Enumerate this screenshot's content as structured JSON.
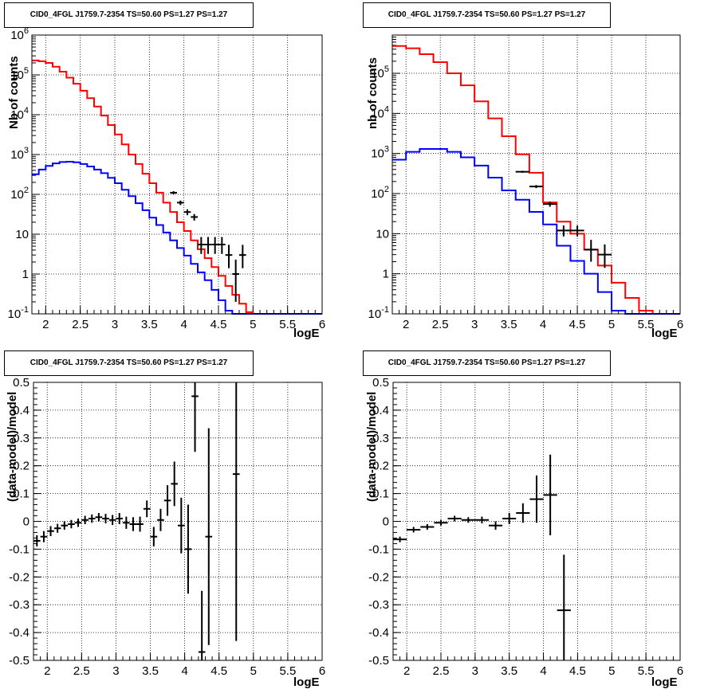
{
  "canvas": {
    "title": "CID0_4FGL J1759.7-2354 TS=50.60 PS=1.27 PS=1.27"
  },
  "chart_data": [
    {
      "type": "line",
      "panel": "top-left",
      "title": "CID0_4FGL J1759.7-2354 TS=50.60 PS=1.27 PS=1.27",
      "xlabel": "logE",
      "ylabel": "Nb of counts",
      "xlim": [
        1.8,
        6
      ],
      "ylim": [
        0.1,
        1000000
      ],
      "yscale": "log",
      "grid": true,
      "xticks": [
        "2",
        "2.5",
        "3",
        "3.5",
        "4",
        "4.5",
        "5",
        "5.5",
        "6"
      ],
      "yticks": [
        "10^-1",
        "1",
        "10",
        "10^2",
        "10^3",
        "10^4",
        "10^5",
        "10^6"
      ],
      "series": [
        {
          "role": "total-model",
          "color": "#ff0000",
          "style": "step",
          "bin_edges": [
            1.8,
            1.9,
            2.0,
            2.1,
            2.2,
            2.3,
            2.4,
            2.5,
            2.6,
            2.7,
            2.8,
            2.9,
            3.0,
            3.1,
            3.2,
            3.3,
            3.4,
            3.5,
            3.6,
            3.7,
            3.8,
            3.9,
            4.0,
            4.1,
            4.2,
            4.3,
            4.4,
            4.5,
            4.6,
            4.7,
            4.8,
            4.9,
            5.0,
            5.1,
            5.2,
            5.3,
            5.4,
            5.5,
            5.6,
            5.7,
            5.8,
            5.9,
            6.0
          ],
          "values": [
            230000,
            220000,
            200000,
            160000,
            120000,
            85000,
            60000,
            40000,
            26000,
            16000,
            9500,
            5500,
            3200,
            1800,
            1000,
            580,
            330,
            190,
            110,
            62,
            36,
            20,
            12,
            7,
            4.2,
            2.5,
            1.5,
            0.9,
            0.5,
            0.3,
            0.18,
            0.11,
            0.07,
            0.05,
            0.03,
            0.02,
            0.02,
            0.02,
            0.02,
            0.02,
            0.02,
            0.02
          ]
        },
        {
          "role": "source-model",
          "color": "#0000ff",
          "style": "step",
          "bin_edges": [
            1.8,
            1.9,
            2.0,
            2.1,
            2.2,
            2.3,
            2.4,
            2.5,
            2.6,
            2.7,
            2.8,
            2.9,
            3.0,
            3.1,
            3.2,
            3.3,
            3.4,
            3.5,
            3.6,
            3.7,
            3.8,
            3.9,
            4.0,
            4.1,
            4.2,
            4.3,
            4.4,
            4.5,
            4.6,
            4.7,
            4.8,
            4.9,
            5.0,
            5.1,
            5.2,
            5.3,
            5.4,
            5.5,
            5.6,
            5.7,
            5.8,
            5.9,
            6.0
          ],
          "values": [
            320,
            420,
            520,
            600,
            650,
            660,
            640,
            580,
            500,
            420,
            340,
            260,
            190,
            130,
            90,
            60,
            40,
            26,
            17,
            11,
            7,
            4.5,
            2.9,
            1.8,
            1.1,
            0.7,
            0.4,
            0.22,
            0.12,
            0.06,
            0.04,
            0.02,
            0.02,
            0.02,
            0.02,
            0.02,
            0.02,
            0.02,
            0.02,
            0.02,
            0.02,
            0.02
          ]
        },
        {
          "role": "data",
          "color": "#000000",
          "style": "errorbar",
          "x": [
            3.85,
            3.95,
            4.05,
            4.15,
            4.25,
            4.35,
            4.45,
            4.55,
            4.65,
            4.75,
            4.85
          ],
          "xerr": [
            0.05,
            0.05,
            0.05,
            0.05,
            0.05,
            0.05,
            0.05,
            0.05,
            0.05,
            0.05,
            0.05
          ],
          "y": [
            110,
            62,
            36,
            27,
            5.5,
            5.5,
            5.5,
            5.5,
            3,
            1,
            3
          ],
          "yerr_low": [
            10,
            8,
            6,
            5,
            2.3,
            2.3,
            2.3,
            2.3,
            1.6,
            0.8,
            1.6
          ],
          "yerr_high": [
            10,
            8,
            6,
            5,
            3,
            3,
            3,
            3,
            2.4,
            1.3,
            2.4
          ]
        }
      ]
    },
    {
      "type": "line",
      "panel": "top-right",
      "title": "CID0_4FGL J1759.7-2354 TS=50.60 PS=1.27 PS=1.27",
      "xlabel": "logE",
      "ylabel": "nb of counts",
      "xlim": [
        1.8,
        6
      ],
      "ylim": [
        0.1,
        900000
      ],
      "yscale": "log",
      "grid": true,
      "xticks": [
        "2",
        "2.5",
        "3",
        "3.5",
        "4",
        "4.5",
        "5",
        "5.5",
        "6"
      ],
      "yticks": [
        "10^-1",
        "1",
        "10",
        "10^2",
        "10^3",
        "10^4",
        "10^5"
      ],
      "series": [
        {
          "role": "total-model",
          "color": "#ff0000",
          "style": "step",
          "bin_edges": [
            1.8,
            2.0,
            2.2,
            2.4,
            2.6,
            2.8,
            3.0,
            3.2,
            3.4,
            3.6,
            3.8,
            4.0,
            4.2,
            4.4,
            4.6,
            4.8,
            5.0,
            5.2,
            5.4,
            5.6,
            5.8,
            6.0
          ],
          "values": [
            480000,
            420000,
            300000,
            190000,
            100000,
            50000,
            20000,
            7500,
            2700,
            950,
            330,
            60,
            20,
            10,
            4,
            1.6,
            0.6,
            0.25,
            0.12,
            0.08,
            0.08
          ]
        },
        {
          "role": "source-model",
          "color": "#0000ff",
          "style": "step",
          "bin_edges": [
            1.8,
            2.0,
            2.2,
            2.4,
            2.6,
            2.8,
            3.0,
            3.2,
            3.4,
            3.6,
            3.8,
            4.0,
            4.2,
            4.4,
            4.6,
            4.8,
            5.0,
            5.2,
            5.4,
            5.6,
            5.8,
            6.0
          ],
          "values": [
            700,
            1100,
            1300,
            1300,
            1100,
            800,
            500,
            250,
            120,
            70,
            35,
            17,
            5,
            2.1,
            1,
            0.35,
            0.12,
            0.08,
            0.08,
            0.08,
            0.08
          ]
        },
        {
          "role": "data",
          "color": "#000000",
          "style": "errorbar",
          "x": [
            3.7,
            3.9,
            4.1,
            4.3,
            4.5,
            4.7,
            4.9
          ],
          "xerr": [
            0.1,
            0.1,
            0.1,
            0.1,
            0.1,
            0.1,
            0.1
          ],
          "y": [
            350,
            150,
            55,
            12,
            12,
            4,
            3
          ],
          "yerr_low": [
            20,
            13,
            8,
            3.5,
            3.5,
            2,
            1.6
          ],
          "yerr_high": [
            20,
            13,
            8,
            4,
            4,
            3,
            2.4
          ]
        }
      ]
    },
    {
      "type": "scatter",
      "panel": "bottom-left",
      "title": "CID0_4FGL J1759.7-2354 TS=50.60 PS=1.27 PS=1.27",
      "xlabel": "logE",
      "ylabel": "(data-model)/model",
      "xlim": [
        1.8,
        6
      ],
      "ylim": [
        -0.5,
        0.5
      ],
      "grid": true,
      "xticks": [
        "2",
        "2.5",
        "3",
        "3.5",
        "4",
        "4.5",
        "5",
        "5.5",
        "6"
      ],
      "yticks": [
        "-0.5",
        "-0.4",
        "-0.3",
        "-0.2",
        "-0.1",
        "0",
        "0.1",
        "0.2",
        "0.3",
        "0.4",
        "0.5"
      ],
      "series": [
        {
          "role": "residuals",
          "color": "#000000",
          "style": "errorbar",
          "x": [
            1.85,
            1.95,
            2.05,
            2.15,
            2.25,
            2.35,
            2.45,
            2.55,
            2.65,
            2.75,
            2.85,
            2.95,
            3.05,
            3.15,
            3.25,
            3.35,
            3.45,
            3.55,
            3.65,
            3.75,
            3.85,
            3.95,
            4.05,
            4.15,
            4.25,
            4.35,
            4.75
          ],
          "xerr": [
            0.05,
            0.05,
            0.05,
            0.05,
            0.05,
            0.05,
            0.05,
            0.05,
            0.05,
            0.05,
            0.05,
            0.05,
            0.05,
            0.05,
            0.05,
            0.05,
            0.05,
            0.05,
            0.05,
            0.05,
            0.05,
            0.05,
            0.05,
            0.05,
            0.05,
            0.05,
            0.05
          ],
          "y": [
            -0.07,
            -0.055,
            -0.035,
            -0.025,
            -0.015,
            -0.01,
            -0.005,
            0.005,
            0.01,
            0.015,
            0.01,
            0.005,
            0.01,
            -0.005,
            -0.01,
            -0.01,
            0.045,
            -0.055,
            0.005,
            0.075,
            0.135,
            -0.015,
            -0.1,
            0.45,
            -0.47,
            -0.055,
            0.17
          ],
          "yerr": [
            0.02,
            0.02,
            0.018,
            0.016,
            0.015,
            0.015,
            0.015,
            0.015,
            0.015,
            0.015,
            0.017,
            0.018,
            0.02,
            0.022,
            0.025,
            0.027,
            0.03,
            0.035,
            0.04,
            0.055,
            0.08,
            0.1,
            0.16,
            0.2,
            0.22,
            0.39,
            0.6
          ]
        }
      ]
    },
    {
      "type": "scatter",
      "panel": "bottom-right",
      "title": "CID0_4FGL J1759.7-2354 TS=50.60 PS=1.27 PS=1.27",
      "xlabel": "logE",
      "ylabel": "(data-model)/model",
      "xlim": [
        1.8,
        6
      ],
      "ylim": [
        -0.5,
        0.5
      ],
      "grid": true,
      "xticks": [
        "2",
        "2.5",
        "3",
        "3.5",
        "4",
        "4.5",
        "5",
        "5.5",
        "6"
      ],
      "yticks": [
        "-0.5",
        "-0.4",
        "-0.3",
        "-0.2",
        "-0.1",
        "0",
        "0.1",
        "0.2",
        "0.3",
        "0.4",
        "0.5"
      ],
      "series": [
        {
          "role": "residuals",
          "color": "#000000",
          "style": "errorbar",
          "x": [
            1.9,
            2.1,
            2.3,
            2.5,
            2.7,
            2.9,
            3.1,
            3.3,
            3.5,
            3.7,
            3.9,
            4.1,
            4.3
          ],
          "xerr": [
            0.1,
            0.1,
            0.1,
            0.1,
            0.1,
            0.1,
            0.1,
            0.1,
            0.1,
            0.1,
            0.1,
            0.1,
            0.1
          ],
          "y": [
            -0.065,
            -0.03,
            -0.02,
            -0.005,
            0.01,
            0.005,
            0.005,
            -0.015,
            0.01,
            0.03,
            0.08,
            0.095,
            -0.32
          ],
          "yerr": [
            0.01,
            0.01,
            0.01,
            0.01,
            0.01,
            0.01,
            0.012,
            0.015,
            0.02,
            0.035,
            0.085,
            0.145,
            0.2
          ]
        }
      ]
    }
  ]
}
